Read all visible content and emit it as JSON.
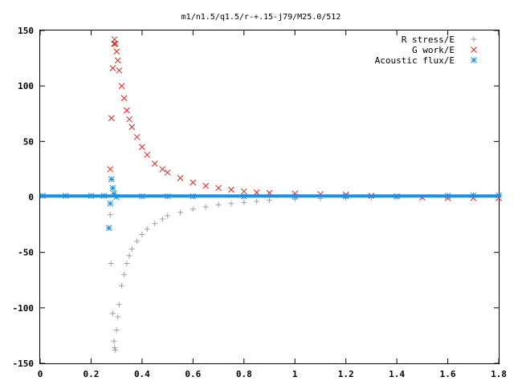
{
  "chart_data": {
    "type": "scatter",
    "title": "m1/n1.5/q1.5/r-+.15-j79/M25.0/512",
    "xlabel": "",
    "ylabel": "",
    "xlim": [
      0,
      1.8
    ],
    "ylim": [
      -150,
      150
    ],
    "x_ticks": [
      "0",
      "0.2",
      "0.4",
      "0.6",
      "0.8",
      "1",
      "1.2",
      "1.4",
      "1.6",
      "1.8"
    ],
    "y_ticks": [
      "150",
      "100",
      "50",
      "0",
      "-50",
      "-100",
      "-150"
    ],
    "grid": false,
    "legend_position": "top-right",
    "series": [
      {
        "name": "R stress/E",
        "marker": "plus",
        "color": "#a0a0a0",
        "points": [
          [
            0.275,
            -16
          ],
          [
            0.278,
            -60
          ],
          [
            0.285,
            -105
          ],
          [
            0.29,
            -130
          ],
          [
            0.292,
            -136
          ],
          [
            0.295,
            -138
          ],
          [
            0.3,
            -120
          ],
          [
            0.305,
            -108
          ],
          [
            0.31,
            -97
          ],
          [
            0.32,
            -80
          ],
          [
            0.33,
            -70
          ],
          [
            0.34,
            -60
          ],
          [
            0.35,
            -53
          ],
          [
            0.36,
            -47
          ],
          [
            0.38,
            -40
          ],
          [
            0.4,
            -34
          ],
          [
            0.42,
            -29
          ],
          [
            0.45,
            -24
          ],
          [
            0.48,
            -20
          ],
          [
            0.5,
            -17
          ],
          [
            0.55,
            -14
          ],
          [
            0.6,
            -11
          ],
          [
            0.65,
            -9
          ],
          [
            0.7,
            -7
          ],
          [
            0.75,
            -6
          ],
          [
            0.8,
            -5
          ],
          [
            0.85,
            -4
          ],
          [
            0.9,
            -3
          ],
          [
            1.0,
            -2
          ],
          [
            1.1,
            -1.5
          ],
          [
            1.2,
            -1
          ],
          [
            1.3,
            -0.7
          ],
          [
            1.4,
            -0.5
          ],
          [
            1.5,
            -0.3
          ],
          [
            1.6,
            0
          ],
          [
            1.7,
            1
          ],
          [
            1.8,
            2
          ]
        ]
      },
      {
        "name": "G work/E",
        "marker": "cross",
        "color": "#e8201f",
        "points": [
          [
            0.275,
            25
          ],
          [
            0.28,
            71
          ],
          [
            0.285,
            116
          ],
          [
            0.29,
            138
          ],
          [
            0.292,
            142
          ],
          [
            0.295,
            138
          ],
          [
            0.3,
            131
          ],
          [
            0.305,
            123
          ],
          [
            0.31,
            114
          ],
          [
            0.32,
            100
          ],
          [
            0.33,
            89
          ],
          [
            0.34,
            78
          ],
          [
            0.35,
            70
          ],
          [
            0.36,
            63
          ],
          [
            0.38,
            54
          ],
          [
            0.4,
            45
          ],
          [
            0.42,
            38
          ],
          [
            0.45,
            30
          ],
          [
            0.48,
            25
          ],
          [
            0.5,
            22
          ],
          [
            0.55,
            17
          ],
          [
            0.6,
            13
          ],
          [
            0.65,
            10
          ],
          [
            0.7,
            8
          ],
          [
            0.75,
            6.5
          ],
          [
            0.8,
            5
          ],
          [
            0.85,
            4
          ],
          [
            0.9,
            3.5
          ],
          [
            1.0,
            3
          ],
          [
            1.1,
            2.5
          ],
          [
            1.2,
            2
          ],
          [
            1.3,
            1
          ],
          [
            1.4,
            0.5
          ],
          [
            1.5,
            -0.5
          ],
          [
            1.6,
            -1
          ],
          [
            1.7,
            -1
          ],
          [
            1.8,
            -1
          ]
        ]
      },
      {
        "name": "Acoustic flux/E",
        "marker": "star",
        "color": "#1e90e0",
        "points": [
          [
            0.01,
            1
          ],
          [
            0.1,
            1
          ],
          [
            0.2,
            1
          ],
          [
            0.25,
            1
          ],
          [
            0.27,
            -28
          ],
          [
            0.275,
            -6
          ],
          [
            0.28,
            16
          ],
          [
            0.285,
            8
          ],
          [
            0.29,
            3
          ],
          [
            0.3,
            0
          ],
          [
            0.4,
            0.5
          ],
          [
            0.5,
            0.5
          ],
          [
            0.6,
            0.5
          ],
          [
            0.8,
            0.5
          ],
          [
            1.0,
            0.5
          ],
          [
            1.2,
            0.5
          ],
          [
            1.4,
            0.5
          ],
          [
            1.6,
            1
          ],
          [
            1.7,
            1.5
          ],
          [
            1.8,
            1.5
          ]
        ]
      }
    ]
  }
}
